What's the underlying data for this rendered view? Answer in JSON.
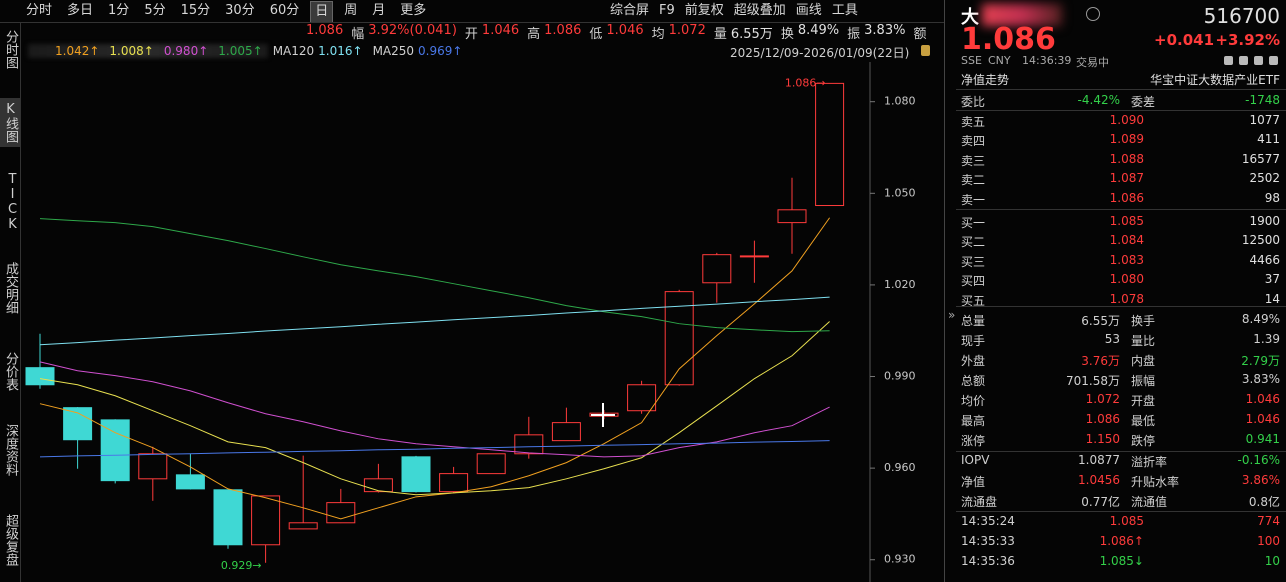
{
  "toolbar": {
    "periods": [
      "分时",
      "多日",
      "1分",
      "5分",
      "15分",
      "30分",
      "60分",
      "日",
      "周",
      "月",
      "更多"
    ],
    "selected": 7,
    "tools": [
      "综合屏",
      "F9",
      "前复权",
      "超级叠加",
      "画线",
      "工具"
    ]
  },
  "sidebar": {
    "items": [
      "分时图",
      "K线图",
      "TICK",
      "成交明细",
      "分价表",
      "深度资料",
      "超级复盘"
    ],
    "selected": 1
  },
  "quote_bar": [
    {
      "value": "1.086",
      "color": "#ff3b3b"
    },
    {
      "label": "幅",
      "value": "3.92%(0.041)",
      "color": "#ff3b3b"
    },
    {
      "label": "开",
      "value": "1.046",
      "color": "#ff3b3b"
    },
    {
      "label": "高",
      "value": "1.086",
      "color": "#ff3b3b"
    },
    {
      "label": "低",
      "value": "1.046",
      "color": "#ff3b3b"
    },
    {
      "label": "均",
      "value": "1.072",
      "color": "#ff3b3b"
    },
    {
      "label": "量",
      "value": "6.55万",
      "color": "#e0e0e0"
    },
    {
      "label": "换",
      "value": "8.49%",
      "color": "#e0e0e0"
    },
    {
      "label": "振",
      "value": "3.83%",
      "color": "#e0e0e0"
    },
    {
      "label": "额"
    }
  ],
  "kline": {
    "type": "candlestick",
    "date_range": "2025/12/09-2026/01/09(22日)",
    "up_color": "#ff3b3b",
    "down_color": "#3fd8d4",
    "candles": {
      "open": [
        0.9929,
        0.9798,
        0.9758,
        0.9565,
        0.9578,
        0.9529,
        0.9349,
        0.9401,
        0.9421,
        0.9523,
        0.9637,
        0.9523,
        0.9582,
        0.9647,
        0.969,
        0.977,
        0.9788,
        0.9873,
        1.0207,
        1.0292,
        1.0404,
        1.046
      ],
      "high": [
        1.004,
        0.98,
        0.976,
        0.967,
        0.9647,
        0.953,
        0.951,
        0.9641,
        0.9532,
        0.9614,
        0.964,
        0.9604,
        0.9647,
        0.9768,
        0.9798,
        0.979,
        0.9886,
        1.0184,
        1.0305,
        1.0345,
        1.0551,
        1.086
      ],
      "low": [
        0.986,
        0.9598,
        0.955,
        0.9493,
        0.953,
        0.9336,
        0.929,
        0.94,
        0.942,
        0.952,
        0.952,
        0.952,
        0.9582,
        0.9631,
        0.969,
        0.976,
        0.9778,
        0.987,
        1.0142,
        1.0207,
        1.0302,
        1.046
      ],
      "close": [
        0.9873,
        0.9693,
        0.9559,
        0.9647,
        0.9532,
        0.9349,
        0.9509,
        0.9421,
        0.9487,
        0.9565,
        0.9523,
        0.9582,
        0.9647,
        0.9709,
        0.9749,
        0.978,
        0.9873,
        1.0178,
        1.0299,
        1.0295,
        1.0446,
        1.086
      ]
    },
    "lines": [
      {
        "label": "1.042↑",
        "color": "#f0a020",
        "values": [
          0.9811,
          0.9781,
          0.9716,
          0.9667,
          0.9604,
          0.9532,
          0.9503,
          0.947,
          0.9434,
          0.947,
          0.9506,
          0.9519,
          0.9539,
          0.9575,
          0.9618,
          0.968,
          0.9749,
          0.9925,
          1.0034,
          1.0138,
          1.0246,
          1.042
        ]
      },
      {
        "label": "1.008↑",
        "color": "#e8e050",
        "values": [
          0.9893,
          0.9873,
          0.9837,
          0.9788,
          0.9739,
          0.9686,
          0.9667,
          0.9618,
          0.9565,
          0.9526,
          0.9513,
          0.9519,
          0.9526,
          0.9536,
          0.9565,
          0.9598,
          0.9634,
          0.9716,
          0.9804,
          0.9893,
          0.9968,
          1.008
        ]
      },
      {
        "label": "0.980↑",
        "color": "#d050d0",
        "values": [
          0.9948,
          0.9919,
          0.9903,
          0.9883,
          0.9853,
          0.9814,
          0.9778,
          0.9752,
          0.9722,
          0.9696,
          0.968,
          0.967,
          0.966,
          0.965,
          0.9644,
          0.9637,
          0.964,
          0.9667,
          0.9686,
          0.9716,
          0.9739,
          0.98
        ]
      },
      {
        "label": "1.005↑",
        "color": "#2ea84a",
        "values": [
          1.0417,
          1.041,
          1.0404,
          1.0391,
          1.0368,
          1.0345,
          1.0319,
          1.0292,
          1.0266,
          1.0246,
          1.0227,
          1.0204,
          1.0181,
          1.0158,
          1.0132,
          1.0112,
          1.0096,
          1.0073,
          1.006,
          1.0053,
          1.0047,
          1.005
        ]
      },
      {
        "name": "MA120",
        "label": "1.016↑",
        "color": "#7fe0f0",
        "values": [
          1.0004,
          1.0011,
          1.0019,
          1.0026,
          1.0034,
          1.0041,
          1.0049,
          1.0056,
          1.0063,
          1.0071,
          1.0078,
          1.0086,
          1.0093,
          1.01,
          1.0108,
          1.0115,
          1.0123,
          1.013,
          1.0137,
          1.0145,
          1.0152,
          1.016
        ]
      },
      {
        "name": "MA250",
        "label": "0.969↑",
        "color": "#4a78e8",
        "values": [
          0.9637,
          0.964,
          0.9642,
          0.9645,
          0.9647,
          0.965,
          0.9652,
          0.9655,
          0.9657,
          0.966,
          0.9662,
          0.9665,
          0.9667,
          0.967,
          0.9672,
          0.9675,
          0.9677,
          0.968,
          0.9682,
          0.9685,
          0.9687,
          0.969
        ]
      }
    ],
    "ylim": [
      0.925,
      1.093
    ],
    "yticks": [
      {
        "value": 1.08,
        "label": "1.080"
      },
      {
        "value": 1.05,
        "label": "1.050"
      },
      {
        "value": 1.02,
        "label": "1.020"
      },
      {
        "value": 0.99,
        "label": "0.990"
      },
      {
        "value": 0.96,
        "label": "0.960"
      },
      {
        "value": 0.93,
        "label": "0.930"
      }
    ],
    "high_label": {
      "value": 1.086,
      "label": "1.086→"
    },
    "low_label": {
      "value": 0.929,
      "label": "0.929→"
    }
  },
  "quote": {
    "name": "大",
    "code": "516700",
    "price": "1.086",
    "change": "+0.041",
    "pct": "+3.92%",
    "exchange": "SSE",
    "currency": "CNY",
    "time": "14:36:39",
    "status": "交易中",
    "nav_link": "净值走势",
    "full_name": "华宝中证大数据产业ETF"
  },
  "order_ratio": [
    {
      "text": "委比"
    },
    {
      "text": "-4.42%",
      "color": "#33d04a"
    },
    {
      "text": "委差"
    },
    {
      "text": "-1748",
      "color": "#33d04a"
    }
  ],
  "book": [
    {
      "label": "卖五",
      "price": "1.090",
      "volume": "1077"
    },
    {
      "label": "卖四",
      "price": "1.089",
      "volume": "411"
    },
    {
      "label": "卖三",
      "price": "1.088",
      "volume": "16577"
    },
    {
      "label": "卖二",
      "price": "1.087",
      "volume": "2502"
    },
    {
      "label": "卖一",
      "price": "1.086",
      "volume": "98"
    },
    {
      "label": "买一",
      "price": "1.085",
      "volume": "1900"
    },
    {
      "label": "买二",
      "price": "1.084",
      "volume": "12500"
    },
    {
      "label": "买三",
      "price": "1.083",
      "volume": "4466"
    },
    {
      "label": "买四",
      "price": "1.080",
      "volume": "37"
    },
    {
      "label": "买五",
      "price": "1.078",
      "volume": "14"
    }
  ],
  "stats": [
    [
      {
        "text": "总量"
      },
      {
        "text": "6.55万"
      },
      {
        "text": "换手"
      },
      {
        "text": "8.49%"
      }
    ],
    [
      {
        "text": "现手"
      },
      {
        "text": "53"
      },
      {
        "text": "量比"
      },
      {
        "text": "1.39"
      }
    ],
    [
      {
        "text": "外盘"
      },
      {
        "text": "3.76万",
        "color": "#ff3b3b"
      },
      {
        "text": "内盘"
      },
      {
        "text": "2.79万",
        "color": "#33d04a"
      }
    ],
    [
      {
        "text": "总额"
      },
      {
        "text": "701.58万"
      },
      {
        "text": "振幅"
      },
      {
        "text": "3.83%"
      }
    ],
    [
      {
        "text": "均价"
      },
      {
        "text": "1.072",
        "color": "#ff3b3b"
      },
      {
        "text": "开盘"
      },
      {
        "text": "1.046",
        "color": "#ff3b3b"
      }
    ],
    [
      {
        "text": "最高"
      },
      {
        "text": "1.086",
        "color": "#ff3b3b"
      },
      {
        "text": "最低"
      },
      {
        "text": "1.046",
        "color": "#ff3b3b"
      }
    ],
    [
      {
        "text": "涨停"
      },
      {
        "text": "1.150",
        "color": "#ff3b3b"
      },
      {
        "text": "跌停"
      },
      {
        "text": "0.941",
        "color": "#33d04a"
      }
    ]
  ],
  "iopv": [
    [
      {
        "text": "IOPV"
      },
      {
        "text": "1.0877"
      },
      {
        "text": "溢折率"
      },
      {
        "text": "-0.16%",
        "color": "#33d04a"
      }
    ],
    [
      {
        "text": "净值"
      },
      {
        "text": "1.0456",
        "color": "#ff3b3b"
      },
      {
        "text": "升贴水率"
      },
      {
        "text": "3.86%",
        "color": "#ff3b3b"
      }
    ],
    [
      {
        "text": "流通盘"
      },
      {
        "text": "0.77亿"
      },
      {
        "text": "流通值"
      },
      {
        "text": "0.8亿"
      }
    ]
  ],
  "ticks": [
    {
      "time": "14:35:24",
      "price": "1.085",
      "volume": "774",
      "color": "#ff3b3b"
    },
    {
      "time": "14:35:33",
      "price": "1.086↑",
      "volume": "100",
      "color": "#ff3b3b"
    },
    {
      "time": "14:35:36",
      "price": "1.085↓",
      "volume": "10",
      "color": "#33d04a"
    }
  ]
}
